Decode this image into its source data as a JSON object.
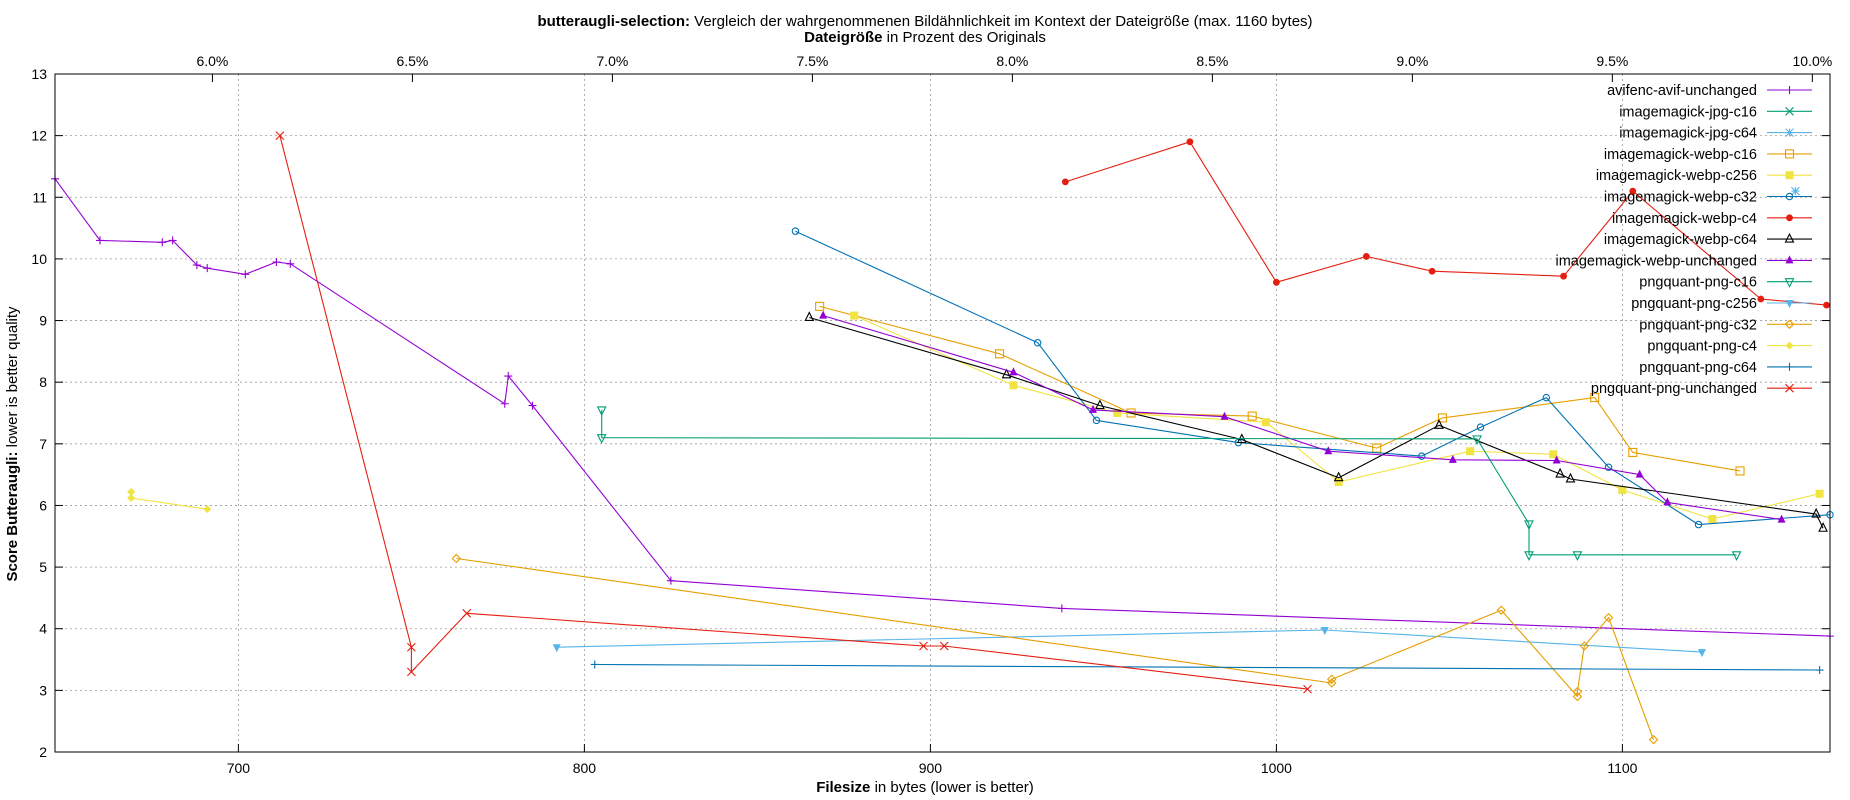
{
  "chart_data": {
    "type": "line",
    "title_bold": "butteraugli-selection:",
    "title_rest": "Vergleich der wahrgenommenen Bildähnlichkeit im Kontext der Dateigröße (max. 1160 bytes)",
    "x2label_bold": "Dateigröße",
    "x2label_rest": "in Prozent des Originals",
    "xlabel_bold": "Filesize",
    "xlabel_rest": "in bytes (lower is better)",
    "ylabel_bold": "Score Butteraugli:",
    "ylabel_rest": "lower is better quality",
    "xlim": [
      647,
      1160
    ],
    "ylim": [
      2,
      13
    ],
    "x_ticks": [
      700,
      800,
      900,
      1000,
      1100
    ],
    "y_ticks": [
      2,
      3,
      4,
      5,
      6,
      7,
      8,
      9,
      10,
      11,
      12,
      13
    ],
    "x2_ticks": [
      {
        "label": "6.0%",
        "x": 692.5
      },
      {
        "label": "6.5%",
        "x": 750.3
      },
      {
        "label": "7.0%",
        "x": 808.1
      },
      {
        "label": "7.5%",
        "x": 865.9
      },
      {
        "label": "8.0%",
        "x": 923.7
      },
      {
        "label": "8.5%",
        "x": 981.5
      },
      {
        "label": "9.0%",
        "x": 1039.3
      },
      {
        "label": "9.5%",
        "x": 1097.1
      },
      {
        "label": "10.0%",
        "x": 1154.9
      }
    ],
    "grid": true,
    "legend_position": "top-right",
    "series": [
      {
        "name": "avifenc-avif-unchanged",
        "color": "#9400d3",
        "marker": "plus",
        "points": [
          [
            647,
            11.3
          ],
          [
            660,
            10.3
          ],
          [
            678,
            10.27
          ],
          [
            681,
            10.3
          ],
          [
            688,
            9.9
          ],
          [
            691,
            9.85
          ],
          [
            702,
            9.75
          ],
          [
            711,
            9.95
          ],
          [
            715,
            9.92
          ],
          [
            777,
            7.65
          ],
          [
            778,
            8.1
          ],
          [
            785,
            7.62
          ],
          [
            825,
            4.78
          ],
          [
            938,
            4.33
          ],
          [
            1160,
            3.88
          ]
        ]
      },
      {
        "name": "imagemagick-jpg-c16",
        "color": "#009e73",
        "marker": "x",
        "points": []
      },
      {
        "name": "imagemagick-jpg-c64",
        "color": "#56b4e9",
        "marker": "star",
        "points": [
          [
            1150,
            11.1
          ]
        ]
      },
      {
        "name": "imagemagick-webp-c16",
        "color": "#e69f00",
        "marker": "square",
        "points": [
          [
            868,
            9.23
          ],
          [
            920,
            8.46
          ],
          [
            958,
            7.5
          ],
          [
            993,
            7.45
          ],
          [
            1029,
            6.93
          ],
          [
            1048,
            7.42
          ],
          [
            1092,
            7.75
          ],
          [
            1103,
            6.86
          ],
          [
            1134,
            6.56
          ]
        ]
      },
      {
        "name": "imagemagick-webp-c256",
        "color": "#f0e442",
        "marker": "filled-square",
        "points": [
          [
            878,
            9.08
          ],
          [
            924,
            7.95
          ],
          [
            954,
            7.5
          ],
          [
            997,
            7.35
          ],
          [
            1018,
            6.38
          ],
          [
            1056,
            6.88
          ],
          [
            1080,
            6.83
          ],
          [
            1100,
            6.25
          ],
          [
            1126,
            5.78
          ],
          [
            1157,
            6.19
          ]
        ]
      },
      {
        "name": "imagemagick-webp-c32",
        "color": "#0072b2",
        "marker": "circle",
        "points": [
          [
            861,
            10.45
          ],
          [
            931,
            8.64
          ],
          [
            948,
            7.38
          ],
          [
            989,
            7.02
          ],
          [
            1042,
            6.8
          ],
          [
            1059,
            7.27
          ],
          [
            1078,
            7.75
          ],
          [
            1096,
            6.62
          ],
          [
            1122,
            5.69
          ],
          [
            1160,
            5.85
          ]
        ]
      },
      {
        "name": "imagemagick-webp-c4",
        "color": "#e51e10",
        "marker": "filled-circle",
        "points": [
          [
            939,
            11.25
          ],
          [
            975,
            11.9
          ],
          [
            1000,
            9.62
          ],
          [
            1026,
            10.04
          ],
          [
            1045,
            9.8
          ],
          [
            1083,
            9.72
          ],
          [
            1103,
            11.1
          ],
          [
            1140,
            9.35
          ],
          [
            1159,
            9.25
          ]
        ]
      },
      {
        "name": "imagemagick-webp-c64",
        "color": "#000000",
        "marker": "triangle",
        "points": [
          [
            865,
            9.05
          ],
          [
            922,
            8.12
          ],
          [
            949,
            7.62
          ],
          [
            990,
            7.07
          ],
          [
            1018,
            6.45
          ],
          [
            1047,
            7.3
          ],
          [
            1082,
            6.51
          ],
          [
            1085,
            6.43
          ],
          [
            1156,
            5.86
          ],
          [
            1158,
            5.63
          ]
        ]
      },
      {
        "name": "imagemagick-webp-unchanged",
        "color": "#9400d3",
        "marker": "filled-triangle",
        "points": [
          [
            869,
            9.08
          ],
          [
            924,
            8.16
          ],
          [
            947,
            7.55
          ],
          [
            985,
            7.44
          ],
          [
            1015,
            6.88
          ],
          [
            1051,
            6.74
          ],
          [
            1081,
            6.73
          ],
          [
            1105,
            6.5
          ],
          [
            1113,
            6.05
          ],
          [
            1146,
            5.77
          ]
        ]
      },
      {
        "name": "pngquant-png-c16",
        "color": "#009e73",
        "marker": "down-triangle",
        "points": [
          [
            805,
            7.55
          ],
          [
            805,
            7.1
          ],
          [
            1058,
            7.08
          ],
          [
            1073,
            5.7
          ],
          [
            1073,
            5.2
          ],
          [
            1087,
            5.2
          ],
          [
            1133,
            5.2
          ]
        ]
      },
      {
        "name": "pngquant-png-c256",
        "color": "#56b4e9",
        "marker": "filled-down-triangle",
        "points": [
          [
            792,
            3.7
          ],
          [
            1014,
            3.98
          ],
          [
            1123,
            3.62
          ]
        ]
      },
      {
        "name": "pngquant-png-c32",
        "color": "#e69f00",
        "marker": "diamond",
        "points": [
          [
            763,
            5.14
          ],
          [
            1016,
            3.12
          ],
          [
            1016,
            3.18
          ],
          [
            1065,
            4.3
          ],
          [
            1087,
            2.9
          ],
          [
            1087,
            2.98
          ],
          [
            1089,
            3.72
          ],
          [
            1096,
            4.18
          ],
          [
            1109,
            2.2
          ]
        ]
      },
      {
        "name": "pngquant-png-c4",
        "color": "#f0e442",
        "marker": "filled-diamond",
        "points": [
          [
            669,
            6.22
          ],
          [
            669,
            6.12
          ],
          [
            691,
            5.94
          ]
        ]
      },
      {
        "name": "pngquant-png-c64",
        "color": "#0072b2",
        "marker": "plus",
        "points": [
          [
            803,
            3.42
          ],
          [
            1157,
            3.33
          ]
        ]
      },
      {
        "name": "pngquant-png-unchanged",
        "color": "#e51e10",
        "marker": "x",
        "points": [
          [
            712,
            12.0
          ],
          [
            750,
            3.7
          ],
          [
            750,
            3.3
          ],
          [
            766,
            4.25
          ],
          [
            898,
            3.72
          ],
          [
            904,
            3.72
          ],
          [
            1009,
            3.02
          ]
        ]
      }
    ]
  }
}
